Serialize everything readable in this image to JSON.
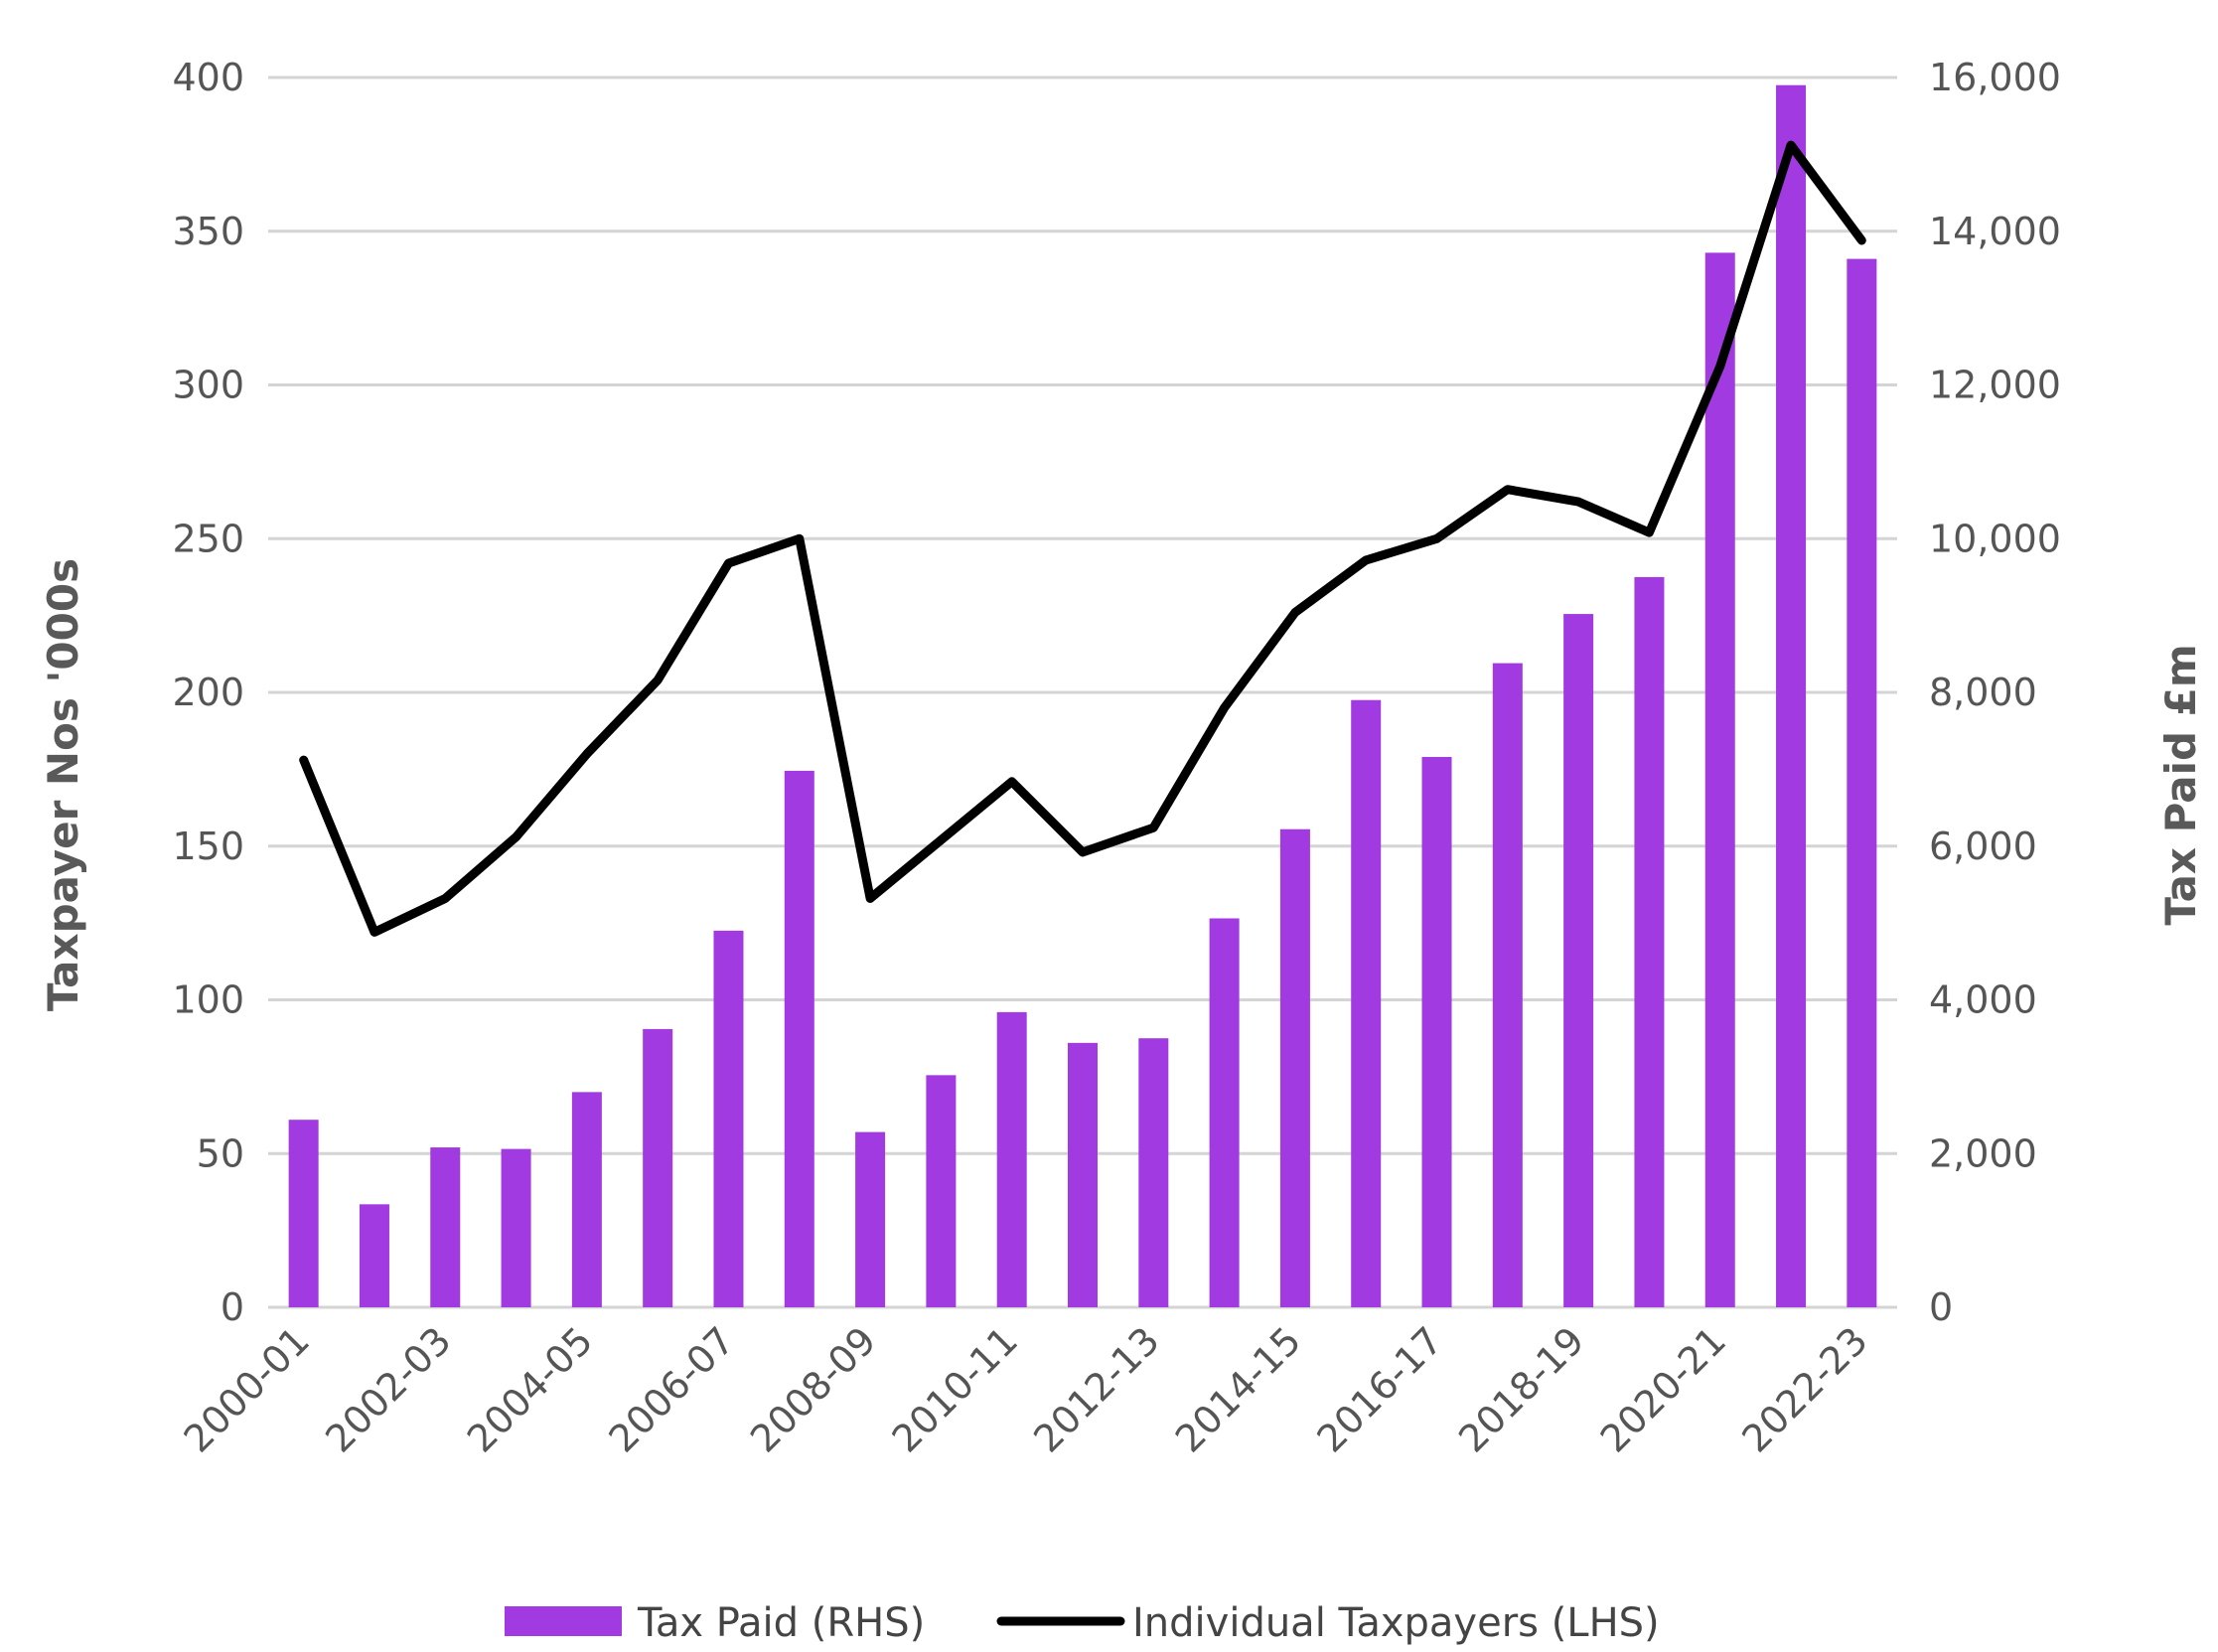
{
  "chart_data": {
    "type": "bar+line",
    "categories": [
      "2000-01",
      "2001-02",
      "2002-03",
      "2003-04",
      "2004-05",
      "2005-06",
      "2006-07",
      "2007-08",
      "2008-09",
      "2009-10",
      "2010-11",
      "2011-12",
      "2012-13",
      "2013-14",
      "2014-15",
      "2015-16",
      "2016-17",
      "2017-18",
      "2018-19",
      "2019-20",
      "2020-21",
      "2021-22",
      "2022-23"
    ],
    "x_tick_labels": [
      "2000-01",
      "2002-03",
      "2004-05",
      "2006-07",
      "2008-09",
      "2010-11",
      "2012-13",
      "2014-15",
      "2016-17",
      "2018-19",
      "2020-21",
      "2022-23"
    ],
    "series": [
      {
        "name": "Tax Paid (RHS)",
        "kind": "bar",
        "axis": "right",
        "color": "#a13ae0",
        "values": [
          2440,
          1340,
          2080,
          2060,
          2800,
          3620,
          4900,
          6980,
          2280,
          3020,
          3840,
          3440,
          3500,
          5060,
          6220,
          7900,
          7160,
          8380,
          9020,
          9500,
          13720,
          15900,
          13640
        ]
      },
      {
        "name": "Individual Taxpayers (LHS)",
        "kind": "line",
        "axis": "left",
        "color": "#000000",
        "values": [
          178,
          122,
          133,
          153,
          180,
          204,
          242,
          250,
          133,
          152,
          171,
          148,
          156,
          195,
          226,
          243,
          250,
          266,
          262,
          252,
          306,
          378,
          347
        ]
      }
    ],
    "ylabel_left": "Taxpayer Nos '000s",
    "ylabel_right": "Tax Paid £m",
    "ylim_left": [
      0,
      400
    ],
    "ylim_right": [
      0,
      16000
    ],
    "yticks_left": [
      "0",
      "50",
      "100",
      "150",
      "200",
      "250",
      "300",
      "350",
      "400"
    ],
    "yticks_right": [
      "0",
      "2,000",
      "4,000",
      "6,000",
      "8,000",
      "10,000",
      "12,000",
      "14,000",
      "16,000"
    ],
    "grid": true,
    "legend_position": "bottom"
  }
}
